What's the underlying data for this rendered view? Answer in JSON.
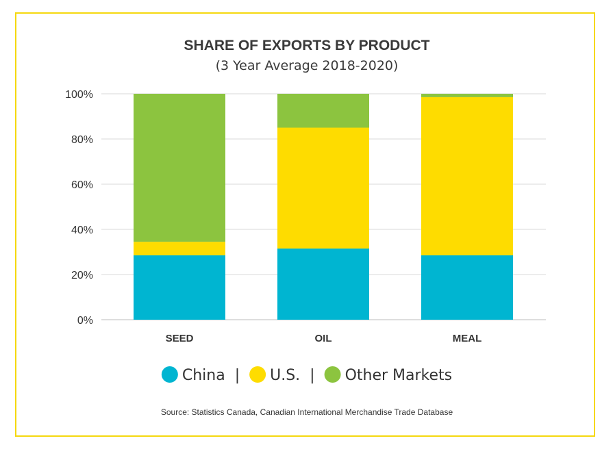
{
  "chart_data": {
    "type": "bar",
    "stacked": true,
    "title": "SHARE OF EXPORTS BY PRODUCT",
    "subtitle": "(3 Year Average 2018-2020)",
    "categories": [
      "SEED",
      "OIL",
      "MEAL"
    ],
    "series": [
      {
        "name": "China",
        "color": "#00b5d1",
        "values": [
          28.5,
          31.5,
          28.5
        ]
      },
      {
        "name": "U.S.",
        "color": "#fedc00",
        "values": [
          6,
          53.5,
          70
        ]
      },
      {
        "name": "Other Markets",
        "color": "#8cc43f",
        "values": [
          65.5,
          15,
          1.5
        ]
      }
    ],
    "ylim": [
      0,
      100
    ],
    "yticks": [
      0,
      20,
      40,
      60,
      80,
      100
    ],
    "ytick_labels": [
      "0%",
      "20%",
      "40%",
      "60%",
      "80%",
      "100%"
    ],
    "xlabel": "",
    "ylabel": "",
    "grid": true,
    "legend": {
      "position": "bottom",
      "separator": "|"
    },
    "source": "Source: Statistics Canada, Canadian International Merchandise Trade Database"
  },
  "colors": {
    "frame": "#f5d80f",
    "grid": "#d9d9d9",
    "text": "#333333"
  }
}
